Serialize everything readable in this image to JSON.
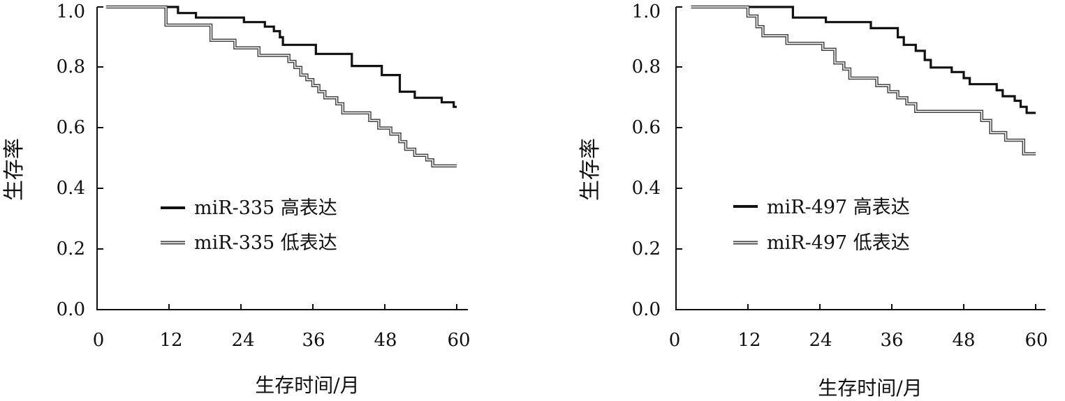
{
  "figure": {
    "background": "#ffffff"
  },
  "chart_data": [
    {
      "type": "line",
      "step": true,
      "ylabel": "生存率",
      "xlabel": "生存时间/月",
      "xlim": [
        0,
        60
      ],
      "ylim": [
        0,
        1.0
      ],
      "xticks": [
        "0",
        "12",
        "24",
        "36",
        "48",
        "60"
      ],
      "yticks": [
        "0.0",
        "0.2",
        "0.4",
        "0.6",
        "0.8",
        "1.0"
      ],
      "grid": false,
      "legend_position": "middle-left",
      "series": [
        {
          "name": "miR-335 高表达",
          "color": "#111111",
          "style": "thick",
          "points": [
            [
              1.5,
              1.0
            ],
            [
              13.5,
              1.0
            ],
            [
              13.5,
              0.98
            ],
            [
              16.5,
              0.98
            ],
            [
              16.5,
              0.965
            ],
            [
              24.5,
              0.965
            ],
            [
              24.5,
              0.95
            ],
            [
              28,
              0.95
            ],
            [
              28,
              0.935
            ],
            [
              29.5,
              0.935
            ],
            [
              29.5,
              0.92
            ],
            [
              30.5,
              0.92
            ],
            [
              30.5,
              0.9
            ],
            [
              31,
              0.9
            ],
            [
              31,
              0.875
            ],
            [
              36.5,
              0.875
            ],
            [
              36.5,
              0.845
            ],
            [
              42.5,
              0.845
            ],
            [
              42.5,
              0.805
            ],
            [
              47.5,
              0.805
            ],
            [
              47.5,
              0.775
            ],
            [
              50.5,
              0.775
            ],
            [
              50.5,
              0.72
            ],
            [
              53,
              0.72
            ],
            [
              53,
              0.7
            ],
            [
              57.5,
              0.7
            ],
            [
              57.5,
              0.685
            ],
            [
              59.5,
              0.685
            ],
            [
              59.5,
              0.67
            ],
            [
              60,
              0.67
            ]
          ]
        },
        {
          "name": "miR-335 低表达",
          "color": "#444444",
          "style": "double",
          "points": [
            [
              1.5,
              1.0
            ],
            [
              11.5,
              1.0
            ],
            [
              11.5,
              0.94
            ],
            [
              19,
              0.94
            ],
            [
              19,
              0.89
            ],
            [
              23,
              0.89
            ],
            [
              23,
              0.865
            ],
            [
              27,
              0.865
            ],
            [
              27,
              0.84
            ],
            [
              32,
              0.84
            ],
            [
              32,
              0.82
            ],
            [
              33,
              0.82
            ],
            [
              33,
              0.8
            ],
            [
              34,
              0.8
            ],
            [
              34,
              0.775
            ],
            [
              35,
              0.775
            ],
            [
              35,
              0.76
            ],
            [
              36,
              0.76
            ],
            [
              36,
              0.74
            ],
            [
              37,
              0.74
            ],
            [
              37,
              0.72
            ],
            [
              38,
              0.72
            ],
            [
              38,
              0.7
            ],
            [
              40,
              0.7
            ],
            [
              40,
              0.68
            ],
            [
              41,
              0.68
            ],
            [
              41,
              0.65
            ],
            [
              45.5,
              0.65
            ],
            [
              45.5,
              0.625
            ],
            [
              47,
              0.625
            ],
            [
              47,
              0.6
            ],
            [
              49,
              0.6
            ],
            [
              49,
              0.58
            ],
            [
              50.5,
              0.58
            ],
            [
              50.5,
              0.555
            ],
            [
              51.5,
              0.555
            ],
            [
              51.5,
              0.53
            ],
            [
              53,
              0.53
            ],
            [
              53,
              0.51
            ],
            [
              55,
              0.51
            ],
            [
              55,
              0.495
            ],
            [
              56,
              0.495
            ],
            [
              56,
              0.475
            ],
            [
              60,
              0.475
            ]
          ]
        }
      ]
    },
    {
      "type": "line",
      "step": true,
      "ylabel": "生存率",
      "xlabel": "生存时间/月",
      "xlim": [
        0,
        60
      ],
      "ylim": [
        0,
        1.0
      ],
      "xticks": [
        "0",
        "12",
        "24",
        "36",
        "48",
        "60"
      ],
      "yticks": [
        "0.0",
        "0.2",
        "0.4",
        "0.6",
        "0.8",
        "1.0"
      ],
      "grid": false,
      "legend_position": "middle-left",
      "series": [
        {
          "name": "miR-497 高表达",
          "color": "#111111",
          "style": "thick",
          "points": [
            [
              2.5,
              1.0
            ],
            [
              19.5,
              1.0
            ],
            [
              19.5,
              0.965
            ],
            [
              25,
              0.965
            ],
            [
              25,
              0.95
            ],
            [
              32.5,
              0.95
            ],
            [
              32.5,
              0.93
            ],
            [
              37,
              0.93
            ],
            [
              37,
              0.9
            ],
            [
              38,
              0.9
            ],
            [
              38,
              0.875
            ],
            [
              40,
              0.875
            ],
            [
              40,
              0.855
            ],
            [
              41.5,
              0.855
            ],
            [
              41.5,
              0.825
            ],
            [
              42.5,
              0.825
            ],
            [
              42.5,
              0.8
            ],
            [
              46,
              0.8
            ],
            [
              46,
              0.785
            ],
            [
              48,
              0.785
            ],
            [
              48,
              0.765
            ],
            [
              49,
              0.765
            ],
            [
              49,
              0.745
            ],
            [
              53.5,
              0.745
            ],
            [
              53.5,
              0.725
            ],
            [
              54.5,
              0.725
            ],
            [
              54.5,
              0.705
            ],
            [
              56.5,
              0.705
            ],
            [
              56.5,
              0.69
            ],
            [
              57.5,
              0.69
            ],
            [
              57.5,
              0.67
            ],
            [
              58.5,
              0.67
            ],
            [
              58.5,
              0.65
            ],
            [
              60,
              0.65
            ]
          ]
        },
        {
          "name": "miR-497 低表达",
          "color": "#444444",
          "style": "double",
          "points": [
            [
              2.5,
              1.0
            ],
            [
              12,
              1.0
            ],
            [
              12,
              0.97
            ],
            [
              13.5,
              0.97
            ],
            [
              13.5,
              0.935
            ],
            [
              14.5,
              0.935
            ],
            [
              14.5,
              0.905
            ],
            [
              18.5,
              0.905
            ],
            [
              18.5,
              0.88
            ],
            [
              24.5,
              0.88
            ],
            [
              24.5,
              0.86
            ],
            [
              26.5,
              0.86
            ],
            [
              26.5,
              0.815
            ],
            [
              28,
              0.815
            ],
            [
              28,
              0.795
            ],
            [
              29,
              0.795
            ],
            [
              29,
              0.765
            ],
            [
              33.5,
              0.765
            ],
            [
              33.5,
              0.74
            ],
            [
              35.5,
              0.74
            ],
            [
              35.5,
              0.72
            ],
            [
              37,
              0.72
            ],
            [
              37,
              0.7
            ],
            [
              38.5,
              0.7
            ],
            [
              38.5,
              0.68
            ],
            [
              40,
              0.68
            ],
            [
              40,
              0.655
            ],
            [
              51,
              0.655
            ],
            [
              51,
              0.625
            ],
            [
              52.5,
              0.625
            ],
            [
              52.5,
              0.585
            ],
            [
              55,
              0.585
            ],
            [
              55,
              0.56
            ],
            [
              58,
              0.56
            ],
            [
              58,
              0.515
            ],
            [
              60,
              0.515
            ]
          ]
        }
      ]
    }
  ]
}
